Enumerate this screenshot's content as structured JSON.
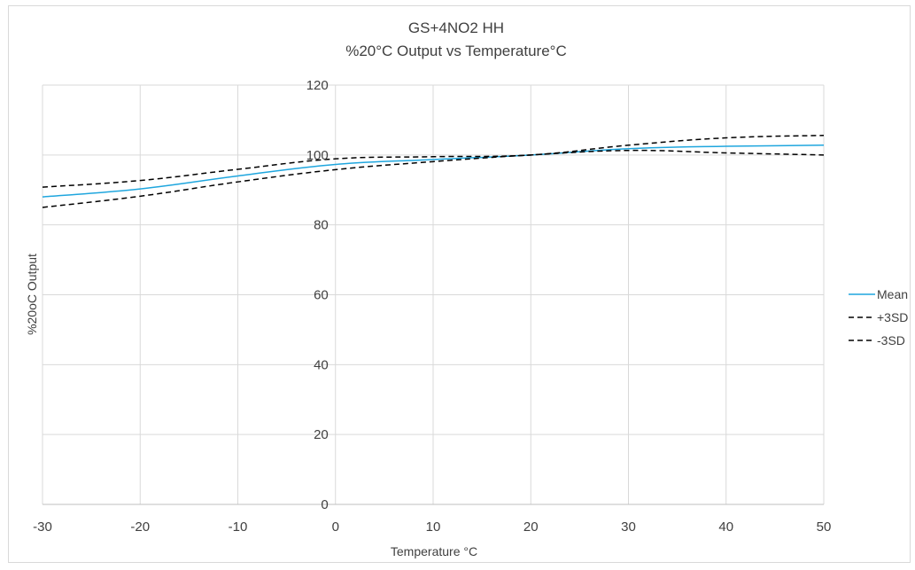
{
  "chart_data": {
    "type": "line",
    "title": "GS+4NO2 HH",
    "subtitle": "%20°C Output vs Temperature°C",
    "xlabel": "Temperature °C",
    "ylabel": "%20oC Output",
    "xlim": [
      -30,
      50
    ],
    "ylim": [
      0,
      120
    ],
    "x_ticks": [
      -30,
      -20,
      -10,
      0,
      10,
      20,
      30,
      40,
      50
    ],
    "y_ticks": [
      0,
      20,
      40,
      60,
      80,
      100,
      120
    ],
    "grid": "vertical and horizontal",
    "legend_position": "right",
    "x": [
      -30,
      -20,
      -10,
      0,
      10,
      20,
      30,
      40,
      50
    ],
    "series": [
      {
        "name": "Mean",
        "color": "#1fa6de",
        "style": "solid",
        "values": [
          88,
          90.3,
          94,
          97.3,
          98.7,
          100,
          101.8,
          102.5,
          102.8
        ]
      },
      {
        "name": "+3SD",
        "color": "#000000",
        "style": "dashed",
        "values": [
          90.8,
          92.7,
          95.9,
          98.9,
          99.5,
          100,
          102.8,
          104.9,
          105.6
        ]
      },
      {
        "name": "-3SD",
        "color": "#000000",
        "style": "dashed",
        "values": [
          85,
          88.2,
          92.3,
          95.8,
          98.1,
          100,
          101.3,
          100.6,
          100
        ]
      }
    ]
  }
}
